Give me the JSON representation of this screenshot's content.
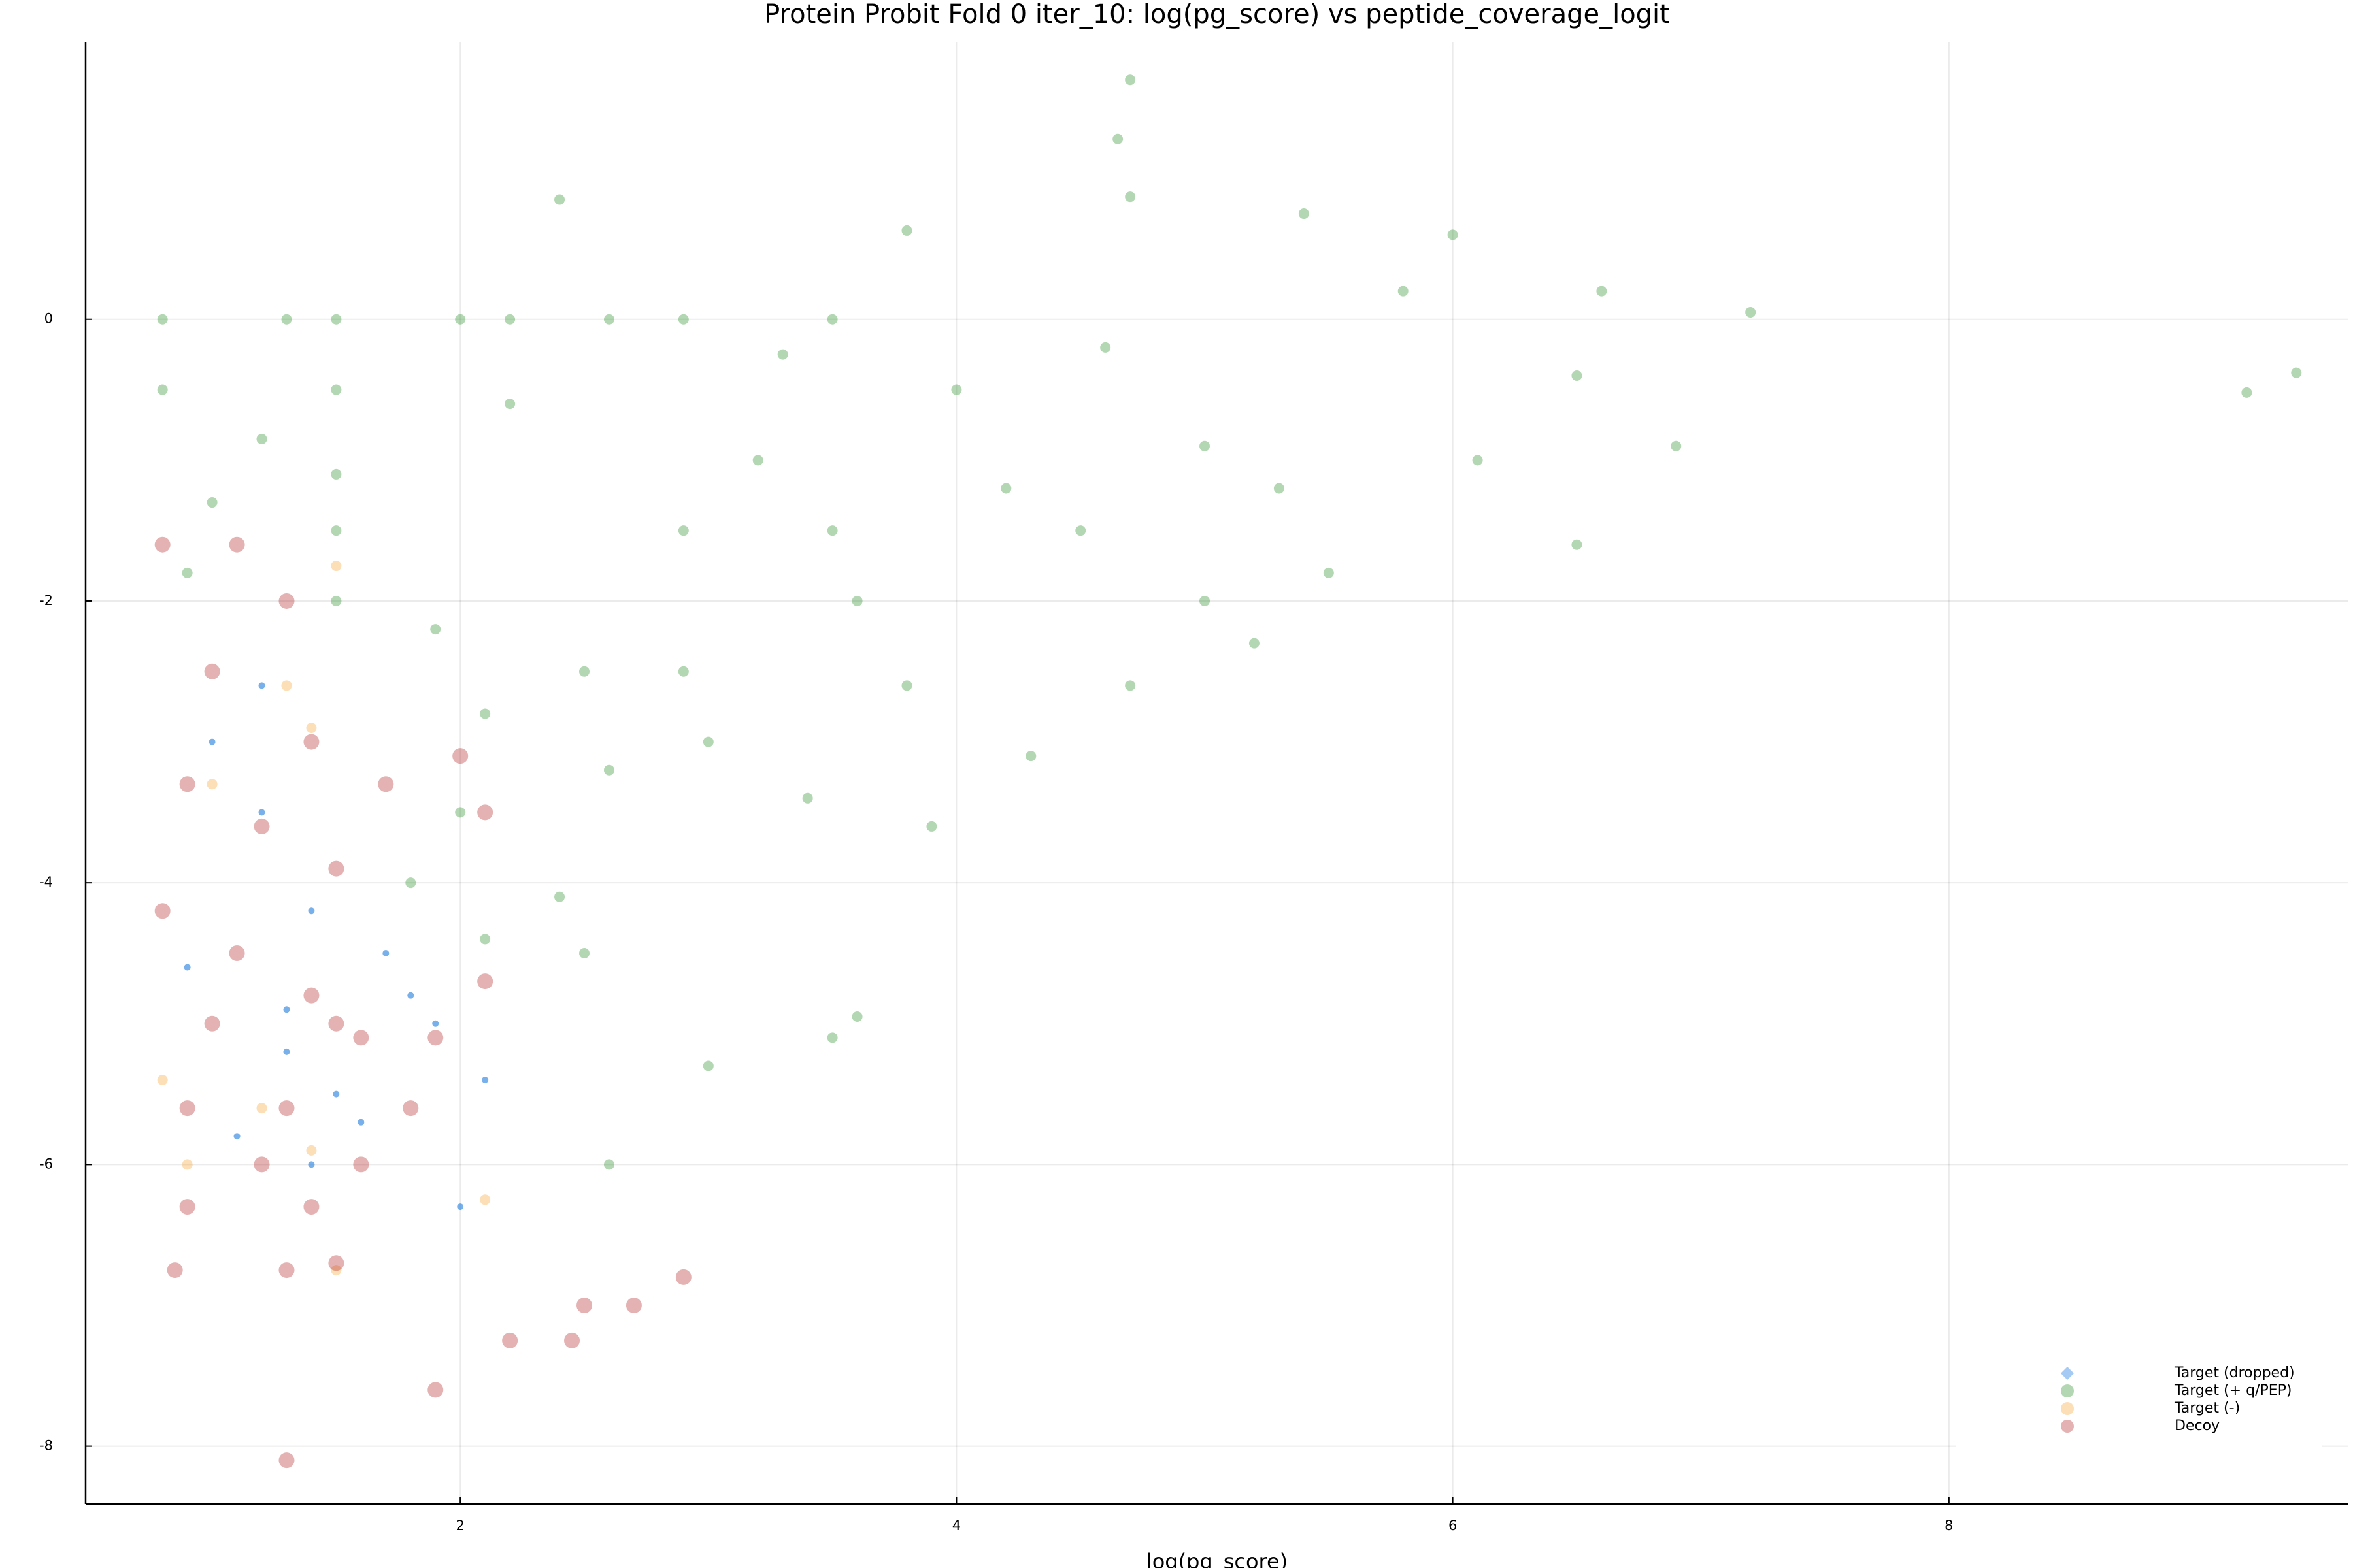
{
  "chart_data": {
    "type": "scatter",
    "title": "Protein Probit Fold 0 iter_10: log(pg_score) vs peptide_coverage_logit",
    "xlabel": "log(pg_score)",
    "xlim": [
      0.49,
      9.61
    ],
    "ylim": [
      -8.41,
      1.97
    ],
    "xticks": [
      2,
      4,
      6,
      8
    ],
    "yticks": [
      -8,
      -6,
      -4,
      -2,
      0
    ],
    "grid": true,
    "legend": "bottom right",
    "series": [
      {
        "name": "Target (dropped)",
        "color": "#1e7be0",
        "x": [
          1.0,
          1.2,
          1.4,
          0.9,
          1.3,
          1.5,
          1.1,
          1.4,
          1.7,
          1.8,
          1.9,
          2.1,
          2.0,
          1.2,
          1.6,
          1.3
        ],
        "y": [
          -3.0,
          -3.5,
          -4.2,
          -4.6,
          -5.2,
          -5.5,
          -5.8,
          -6.0,
          -4.5,
          -4.8,
          -5.0,
          -5.4,
          -6.3,
          -2.6,
          -5.7,
          -4.9
        ]
      },
      {
        "name": "Target (+ q/PEP)",
        "color": "#228b22",
        "x": [
          0.8,
          1.3,
          1.5,
          2.0,
          2.2,
          2.6,
          2.9,
          3.5,
          4.7,
          4.65,
          4.7,
          3.8,
          5.4,
          2.4,
          0.8,
          1.5,
          2.2,
          1.2,
          1.5,
          1.0,
          1.5,
          0.9,
          1.5,
          1.9,
          2.1,
          2.0,
          1.8,
          2.1,
          2.5,
          2.6,
          2.4,
          2.9,
          2.9,
          3.0,
          3.2,
          3.5,
          3.6,
          3.8,
          3.4,
          4.0,
          4.2,
          4.5,
          4.6,
          5.0,
          5.3,
          5.0,
          4.7,
          4.3,
          3.9,
          5.8,
          6.0,
          6.1,
          6.6,
          6.5,
          6.9,
          6.5,
          7.2,
          9.4,
          9.2,
          2.5,
          3.5,
          3.0,
          2.6,
          3.6,
          3.3,
          5.5,
          5.2
        ],
        "y": [
          0,
          0,
          0,
          0,
          0,
          0,
          0,
          0,
          1.7,
          1.28,
          0.87,
          0.63,
          0.75,
          0.85,
          -0.5,
          -0.5,
          -0.6,
          -0.85,
          -1.1,
          -1.3,
          -1.5,
          -1.8,
          -2.0,
          -2.2,
          -2.8,
          -3.5,
          -4.0,
          -4.4,
          -2.5,
          -3.2,
          -4.1,
          -1.5,
          -2.5,
          -3.0,
          -1.0,
          -1.5,
          -2.0,
          -2.6,
          -3.4,
          -0.5,
          -1.2,
          -1.5,
          -0.2,
          -0.9,
          -1.2,
          -2.0,
          -2.6,
          -3.1,
          -3.6,
          0.2,
          0.6,
          -1.0,
          0.2,
          -0.4,
          -0.9,
          -1.6,
          0.05,
          -0.38,
          -0.52,
          -4.5,
          -5.1,
          -5.3,
          -6.0,
          -4.95,
          -0.25,
          -1.8,
          -2.3
        ]
      },
      {
        "name": "Target (-)",
        "color": "#f5a030",
        "x": [
          1.5,
          1.3,
          1.0,
          0.8,
          0.9,
          1.4,
          2.1,
          1.5,
          1.2,
          1.4
        ],
        "y": [
          -1.75,
          -2.6,
          -3.3,
          -5.4,
          -6.0,
          -5.9,
          -6.25,
          -6.75,
          -5.6,
          -2.9
        ]
      },
      {
        "name": "Decoy",
        "color": "#b22222",
        "x": [
          0.8,
          1.1,
          1.3,
          1.0,
          1.4,
          0.9,
          1.2,
          1.5,
          0.8,
          1.1,
          1.4,
          1.0,
          1.5,
          0.9,
          1.3,
          1.6,
          1.9,
          2.1,
          1.8,
          1.6,
          1.2,
          0.9,
          1.4,
          0.85,
          1.3,
          1.5,
          2.2,
          2.45,
          2.5,
          2.7,
          2.9,
          1.9,
          1.3,
          2.1,
          2.0,
          1.7
        ],
        "y": [
          -1.6,
          -1.6,
          -2.0,
          -2.5,
          -3.0,
          -3.3,
          -3.6,
          -3.9,
          -4.2,
          -4.5,
          -4.8,
          -5.0,
          -5.0,
          -5.6,
          -5.6,
          -5.1,
          -5.1,
          -4.7,
          -5.6,
          -6.0,
          -6.0,
          -6.3,
          -6.3,
          -6.75,
          -6.75,
          -6.7,
          -7.25,
          -7.25,
          -7.0,
          -7.0,
          -6.8,
          -7.6,
          -8.1,
          -3.5,
          -3.1,
          -3.3
        ]
      }
    ]
  }
}
